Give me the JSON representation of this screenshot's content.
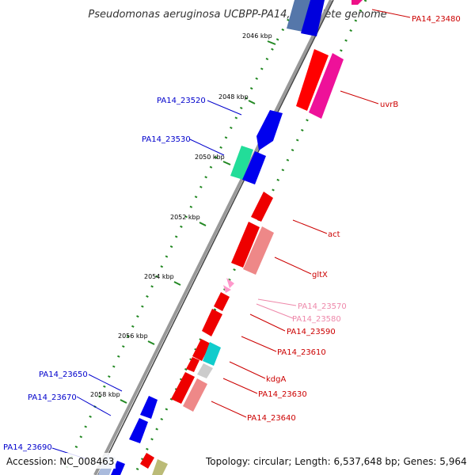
{
  "title": "Pseudomonas aeruginosa UCBPP-PA14, complete genome",
  "footer": {
    "accession": "Accession: NC_008463",
    "summary": "Topology: circular; Length: 6,537,648 bp; Genes: 5,964"
  },
  "scale_labels": [
    "2046 kbp",
    "2048 kbp",
    "2050 kbp",
    "2052 kbp",
    "2054 kbp",
    "2056 kbp",
    "2058 kbp"
  ],
  "gene_labels": {
    "pa14_23480": "PA14_23480",
    "uvrB": "uvrB",
    "pa14_23520": "PA14_23520",
    "pa14_23530": "PA14_23530",
    "act": "act",
    "gltX": "gltX",
    "pa14_23570": "PA14_23570",
    "pa14_23580": "PA14_23580",
    "pa14_23590": "PA14_23590",
    "pa14_23610": "PA14_23610",
    "kdgA": "kdgA",
    "pa14_23630": "PA14_23630",
    "pa14_23640": "PA14_23640",
    "pa14_23650": "PA14_23650",
    "pa14_23670": "PA14_23670",
    "pa14_23690": "PA14_23690"
  },
  "colors": {
    "backbone": "#888888",
    "forward_gene": "#0000ee",
    "reverse_gene": "#ee0000",
    "forward_label": "#0000cc",
    "reverse_label": "#cc0000",
    "pink_label": "#ee88aa",
    "tick": "#228822"
  }
}
